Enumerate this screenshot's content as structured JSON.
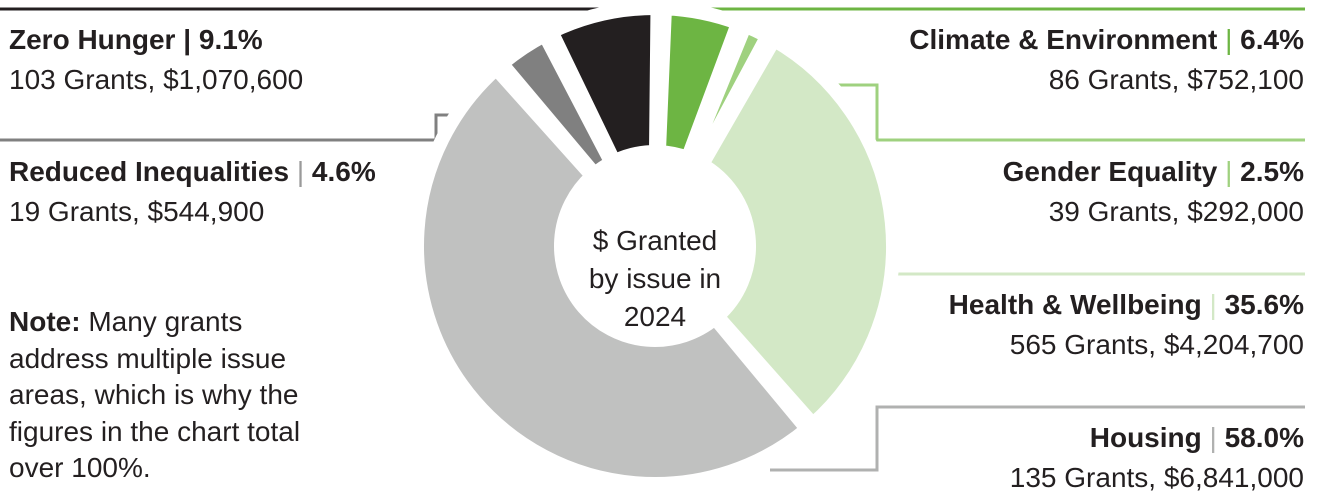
{
  "colors": {
    "zero_hunger": "#231f20",
    "reduced_inequalities": "#808080",
    "housing": "#c0c1c0",
    "health": "#d3e8c6",
    "gender": "#9fd17f",
    "climate": "#6db543"
  },
  "center_label": [
    "$ Granted",
    "by issue in",
    "2024"
  ],
  "labels": {
    "zero_hunger": {
      "name": "Zero Hunger",
      "sep": "|",
      "pct": "9.1%",
      "detail": "103 Grants, $1,070,600"
    },
    "reduced_inequalities": {
      "name": "Reduced Inequalities",
      "sep": "|",
      "pct": "4.6%",
      "detail": "19 Grants, $544,900"
    },
    "climate": {
      "name": "Climate & Environment",
      "sep": "|",
      "pct": "6.4%",
      "detail": "86 Grants, $752,100"
    },
    "gender": {
      "name": "Gender Equality",
      "sep": "|",
      "pct": "2.5%",
      "detail": "39 Grants, $292,000"
    },
    "health": {
      "name": "Health & Wellbeing",
      "sep": "|",
      "pct": "35.6%",
      "detail": "565 Grants, $4,204,700"
    },
    "housing": {
      "name": "Housing",
      "sep": "|",
      "pct": "58.0%",
      "detail": "135 Grants, $6,841,000"
    }
  },
  "note": {
    "bold": "Note:",
    "text": " Many grants address multiple issue areas, which is why the figures in the chart total over 100%."
  },
  "chart_data": {
    "type": "pie",
    "style": "donut",
    "slices": [
      {
        "key": "climate",
        "label": "Climate & Environment",
        "percent": 6.4,
        "grants": 86,
        "amount": 752100
      },
      {
        "key": "gender",
        "label": "Gender Equality",
        "percent": 2.5,
        "grants": 39,
        "amount": 292000
      },
      {
        "key": "health",
        "label": "Health & Wellbeing",
        "percent": 35.6,
        "grants": 565,
        "amount": 4204700
      },
      {
        "key": "housing",
        "label": "Housing",
        "percent": 58.0,
        "grants": 135,
        "amount": 6841000
      },
      {
        "key": "reduced_inequalities",
        "label": "Reduced Inequalities",
        "percent": 4.6,
        "grants": 19,
        "amount": 544900
      },
      {
        "key": "zero_hunger",
        "label": "Zero Hunger",
        "percent": 9.1,
        "grants": 103,
        "amount": 1070600
      }
    ]
  }
}
